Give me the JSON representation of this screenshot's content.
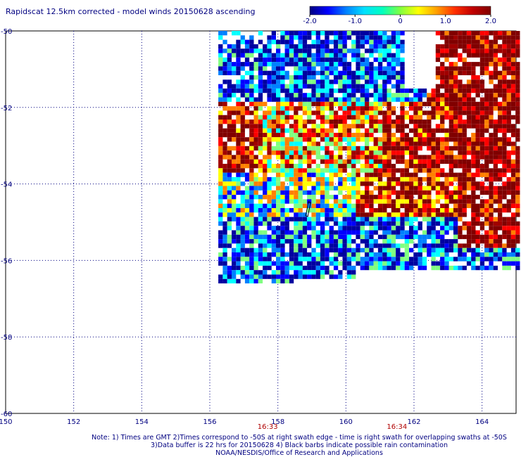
{
  "title": "Rapidscat 12.5km corrected - model winds 20150628 ascending",
  "colorbar": {
    "ticks": [
      "-2.0",
      "-1.0",
      "0",
      "1.0",
      "2.0"
    ],
    "tick_values": [
      -2.0,
      -1.0,
      0,
      1.0,
      2.0
    ],
    "range": [
      -2.0,
      2.0
    ],
    "colors": [
      "#0000a0",
      "#0000ff",
      "#0080ff",
      "#00ffff",
      "#80ff80",
      "#ffff00",
      "#ff8000",
      "#ff0000",
      "#a00000",
      "#800000"
    ]
  },
  "map": {
    "lon_labels": [
      "150",
      "152",
      "154",
      "156",
      "158",
      "160",
      "162",
      "164"
    ],
    "lon_values": [
      150,
      152,
      154,
      156,
      158,
      160,
      162,
      164
    ],
    "lat_labels": [
      "-50",
      "-52",
      "-54",
      "-56",
      "-58",
      "-60"
    ],
    "lat_values": [
      -50,
      -52,
      -54,
      -56,
      -58,
      -60
    ],
    "lon_range": [
      150,
      165
    ],
    "lat_range": [
      -60,
      -50
    ],
    "grid": "dotted",
    "swath_times": [
      {
        "label": "16:33",
        "lon": 157.7
      },
      {
        "label": "16:34",
        "lon": 161.5
      }
    ]
  },
  "notes": {
    "line1": "Note: 1) Times are GMT 2)Times correspond to -50S at right swath edge - time is right swath for overlapping swaths at -50S",
    "line2": "3)Data buffer is 22 hrs for 20150628 4) Black barbs indicate possible rain contamination",
    "line3": "NOAA/NESDIS/Office of Research and Applications"
  }
}
